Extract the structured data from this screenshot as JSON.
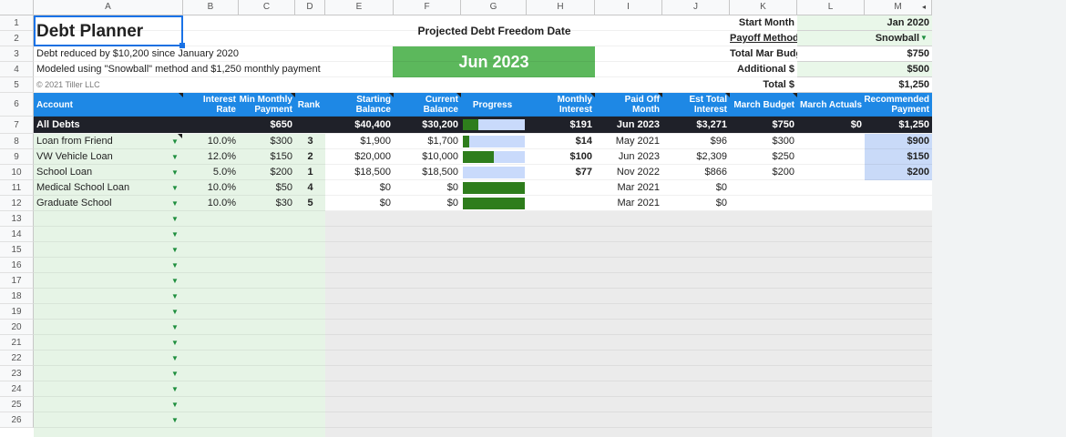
{
  "columns": [
    "A",
    "B",
    "C",
    "D",
    "E",
    "F",
    "G",
    "H",
    "I",
    "J",
    "K",
    "L",
    "M"
  ],
  "rows": [
    "1",
    "2",
    "3",
    "4",
    "5",
    "6",
    "7",
    "8",
    "9",
    "10",
    "11",
    "12",
    "13",
    "14",
    "15",
    "16",
    "17",
    "18",
    "19",
    "20",
    "21",
    "22",
    "23",
    "24",
    "25",
    "26"
  ],
  "title": "Debt Planner",
  "subtitle1": "Debt reduced by $10,200 since January 2020",
  "subtitle2": "Modeled using \"Snowball\" method and $1,250 monthly payment",
  "copyright": "© 2021 Tiller LLC",
  "freedom_label": "Projected Debt Freedom Date",
  "freedom_date": "Jun 2023",
  "settings": {
    "start_month_label": "Start Month",
    "start_month": "Jan 2020",
    "payoff_method_label": "Payoff Method",
    "payoff_method": "Snowball",
    "total_budget_label": "Total Mar Budget",
    "total_budget": "$750",
    "additional_label": "Additional $",
    "additional": "$500",
    "total_label": "Total $",
    "total": "$1,250"
  },
  "headers": {
    "account": "Account",
    "interest_rate": "Interest Rate",
    "min_payment": "Min Monthly Payment",
    "rank": "Rank",
    "starting_balance": "Starting Balance",
    "current_balance": "Current Balance",
    "progress": "Progress",
    "monthly_interest": "Monthly Interest",
    "paid_off_month": "Paid Off Month",
    "est_total_interest": "Est Total Interest",
    "march_budget": "March Budget",
    "march_actuals": "March Actuals",
    "recommended_payment": "Recommended Payment"
  },
  "all_debts": {
    "label": "All Debts",
    "min_payment": "$650",
    "starting_balance": "$40,400",
    "current_balance": "$30,200",
    "progress": 0.25,
    "monthly_interest": "$191",
    "paid_off": "Jun 2023",
    "est_interest": "$3,271",
    "march_budget": "$750",
    "march_actuals": "$0",
    "recommended": "$1,250"
  },
  "debts": [
    {
      "account": "Loan from Friend",
      "rate": "10.0%",
      "min": "$300",
      "rank": "3",
      "start": "$1,900",
      "current": "$1,700",
      "progress": 0.1,
      "interest": "$14",
      "paid_off": "May 2021",
      "est_interest": "$96",
      "budget": "$300",
      "recommended": "$900"
    },
    {
      "account": "VW Vehicle Loan",
      "rate": "12.0%",
      "min": "$150",
      "rank": "2",
      "start": "$20,000",
      "current": "$10,000",
      "progress": 0.5,
      "interest": "$100",
      "paid_off": "Jun 2023",
      "est_interest": "$2,309",
      "budget": "$250",
      "recommended": "$150"
    },
    {
      "account": "School Loan",
      "rate": "5.0%",
      "min": "$200",
      "rank": "1",
      "start": "$18,500",
      "current": "$18,500",
      "progress": 0.0,
      "interest": "$77",
      "paid_off": "Nov 2022",
      "est_interest": "$866",
      "budget": "$200",
      "recommended": "$200"
    },
    {
      "account": "Medical School Loan",
      "rate": "10.0%",
      "min": "$50",
      "rank": "4",
      "start": "$0",
      "current": "$0",
      "progress": 1.0,
      "interest": "",
      "paid_off": "Mar 2021",
      "est_interest": "$0",
      "budget": "",
      "recommended": ""
    },
    {
      "account": "Graduate School",
      "rate": "10.0%",
      "min": "$30",
      "rank": "5",
      "start": "$0",
      "current": "$0",
      "progress": 1.0,
      "interest": "",
      "paid_off": "Mar 2021",
      "est_interest": "$0",
      "budget": "",
      "recommended": ""
    }
  ],
  "colors": {
    "header_blue": "#1e88e5",
    "dark_row": "#1f2129",
    "progress_fill": "#2e7d1c",
    "progress_bg": "#c9dafb",
    "freedom_green": "#5cb85c"
  }
}
